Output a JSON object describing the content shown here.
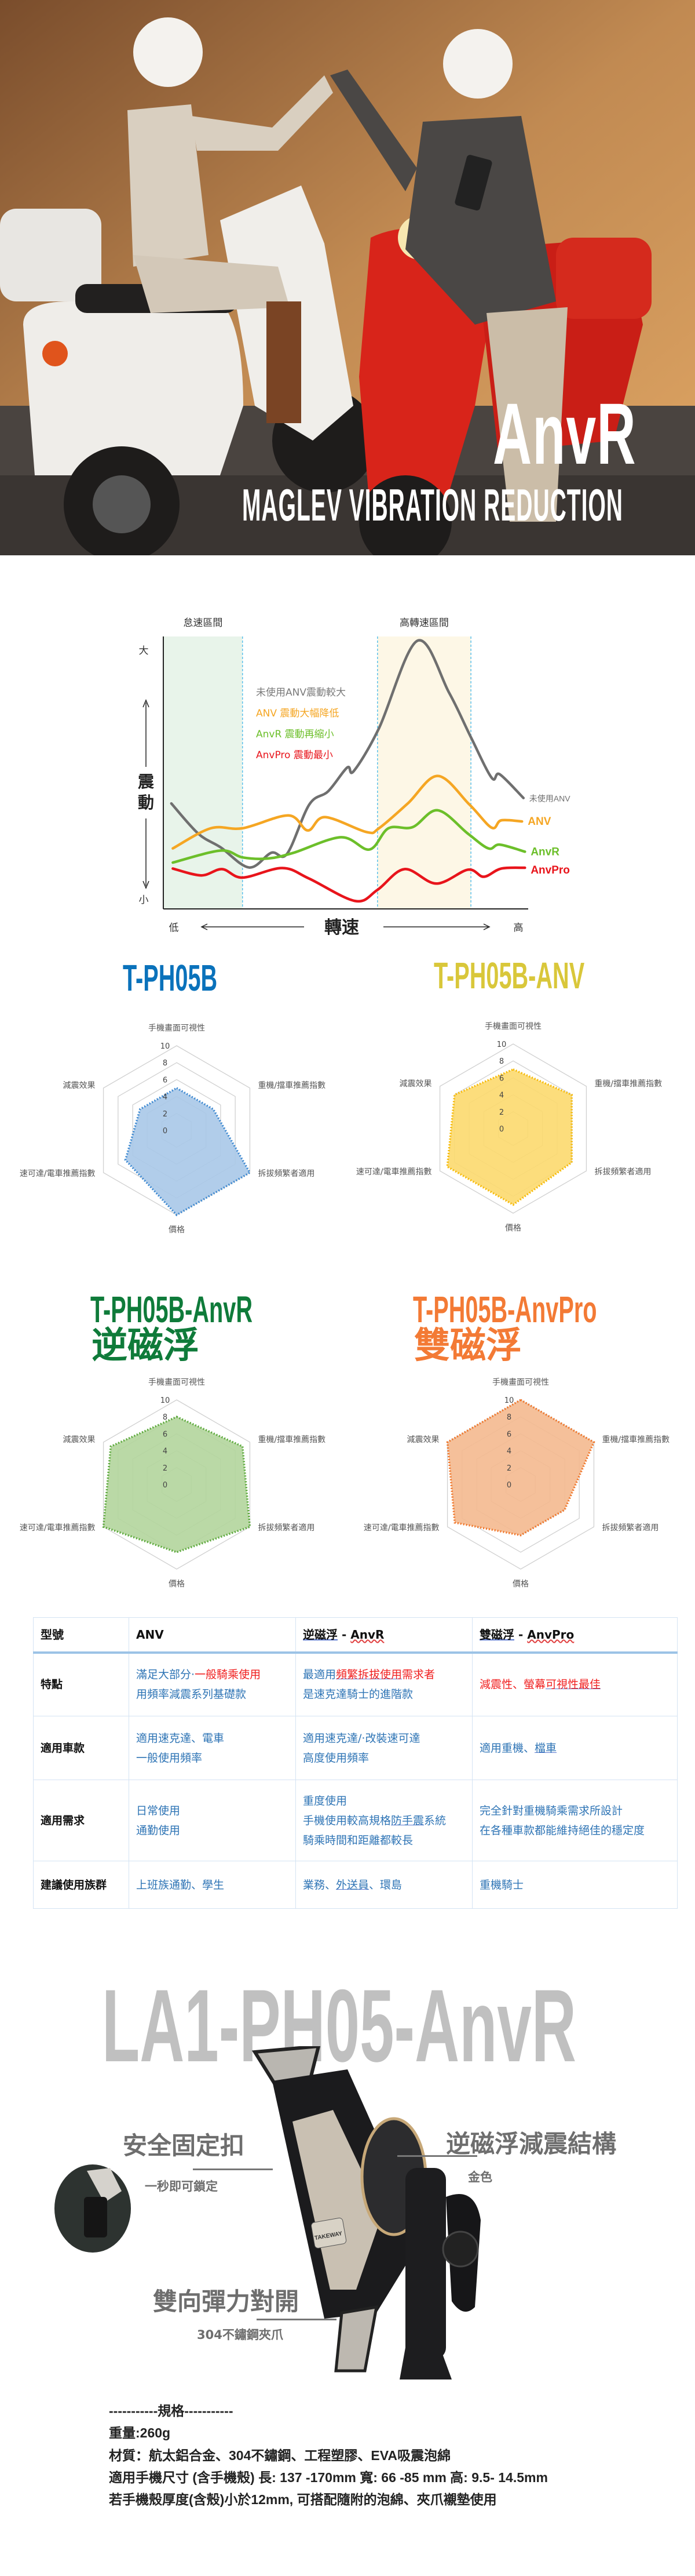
{
  "hero": {
    "title": "AnvR",
    "subtitle": "MAGLEV VIBRATION REDUCTION"
  },
  "chart_data": [
    {
      "type": "line",
      "title": "",
      "xlabel": "轉速",
      "ylabel": "震動",
      "x_low_label": "低",
      "x_high_label": "高",
      "y_high_label": "大",
      "y_low_label": "小",
      "regions": [
        {
          "label": "怠速區間",
          "color": "#e8f4ea",
          "range": [
            0,
            21.7
          ]
        },
        {
          "label": "高轉速區間",
          "color": "#fdf7e6",
          "range": [
            58.7,
            84.3
          ]
        }
      ],
      "annotations": [
        {
          "text": "未使用ANV震動較大",
          "color": "#7a7a7a"
        },
        {
          "text": "ANV 震動大幅降低",
          "color": "#f5a623"
        },
        {
          "text": "AnvR 震動再縮小",
          "color": "#6cbf2a"
        },
        {
          "text": "AnvPro 震動最小",
          "color": "#e8141b"
        }
      ],
      "xlim": [
        0,
        100
      ],
      "ylim": [
        0,
        100
      ],
      "grid": false,
      "series": [
        {
          "name": "未使用ANV",
          "color": "#6f6f6f",
          "x": [
            2.2,
            9.6,
            15.7,
            23.5,
            29.6,
            33.9,
            40,
            45.2,
            50.4,
            52.2,
            59.1,
            69.6,
            78.3,
            84.3,
            90,
            92.2,
            98.7
          ],
          "y": [
            38.7,
            27.6,
            22.6,
            15.2,
            20.6,
            20.2,
            38.3,
            43.2,
            51.9,
            50.6,
            66.3,
            98.4,
            79.4,
            63,
            48.1,
            49.4,
            40.7
          ]
        },
        {
          "name": "ANV",
          "color": "#f5a623",
          "x": [
            2.6,
            13,
            21.7,
            34.3,
            39.6,
            44.3,
            55.7,
            59.1,
            67,
            75.2,
            83.9,
            90,
            92.6,
            98.3
          ],
          "y": [
            22.2,
            29.6,
            29.6,
            34.3,
            28.8,
            33.7,
            28.2,
            29.6,
            38.7,
            48.8,
            38.3,
            29.8,
            32.5,
            32.1
          ]
        },
        {
          "name": "AnvR",
          "color": "#6cbf2a",
          "x": [
            2.6,
            15.7,
            21.7,
            28.7,
            35.7,
            48.7,
            56.5,
            61.7,
            68.3,
            75.2,
            83.5,
            89.1,
            92.2,
            99.1
          ],
          "y": [
            17,
            21.4,
            18.9,
            18.5,
            20.6,
            26.3,
            21.8,
            29.6,
            30,
            36.2,
            27.6,
            22.2,
            23.6,
            21
          ]
        },
        {
          "name": "AnvPro",
          "color": "#e8141b",
          "x": [
            2.6,
            10.4,
            16.1,
            21.7,
            32.6,
            40,
            52.6,
            58.7,
            66.1,
            74.8,
            83.5,
            87.8,
            92.6,
            99.1
          ],
          "y": [
            14.8,
            12.3,
            14.6,
            11.5,
            15,
            11.1,
            2.9,
            7,
            14.6,
            9.3,
            14.4,
            11.8,
            14.8,
            15.1
          ]
        }
      ]
    },
    {
      "type": "radar",
      "title": "T-PH05B",
      "title_color": "#0a72bb",
      "fill": "#a9c8e8",
      "stroke": "#3a87d0",
      "categories": [
        "手機畫面可視性",
        "重機/擋車推薦指數",
        "拆拔頻繁者適用",
        "價格",
        "速可達/電車推薦指數",
        "減震效果"
      ],
      "ticks": [
        0,
        2,
        4,
        6,
        8,
        10
      ],
      "ylim": [
        0,
        10
      ],
      "values": [
        5,
        5,
        10,
        10,
        7,
        5
      ]
    },
    {
      "type": "radar",
      "title": "T-PH05B-ANV",
      "title_color": "#d9c73a",
      "fill": "#fcd96e",
      "stroke": "#f6b800",
      "categories": [
        "手機畫面可視性",
        "重機/擋車推薦指數",
        "拆拔頻繁者適用",
        "價格",
        "速可達/電車推薦指數",
        "減震效果"
      ],
      "ticks": [
        0,
        2,
        4,
        6,
        8,
        10
      ],
      "ylim": [
        0,
        10
      ],
      "values": [
        7,
        8,
        8,
        9,
        9,
        8
      ]
    },
    {
      "type": "radar",
      "title": "T-PH05B-AnvR",
      "subtitle": "逆磁浮",
      "title_color": "#0f7b3a",
      "fill": "#b3d59c",
      "stroke": "#58a737",
      "categories": [
        "手機畫面可視性",
        "重機/擋車推薦指數",
        "拆拔頻繁者適用",
        "價格",
        "速可達/電車推薦指數",
        "減震效果"
      ],
      "ticks": [
        0,
        2,
        4,
        6,
        8,
        10
      ],
      "ylim": [
        0,
        10
      ],
      "values": [
        8,
        9,
        10,
        8,
        10,
        9
      ]
    },
    {
      "type": "radar",
      "title": "T-PH05B-AnvPro",
      "subtitle": "雙磁浮",
      "title_color": "#f37a35",
      "fill": "#f4b98f",
      "stroke": "#f07325",
      "categories": [
        "手機畫面可視性",
        "重機/擋車推薦指數",
        "拆拔頻繁者適用",
        "價格",
        "速可達/電車推薦指數",
        "減震效果"
      ],
      "ticks": [
        0,
        2,
        4,
        6,
        8,
        10
      ],
      "ylim": [
        0,
        10
      ],
      "values": [
        10,
        10,
        6,
        6,
        9,
        10
      ]
    }
  ],
  "table": {
    "headers": {
      "c0": "型號",
      "c1": "ANV",
      "c2a": "逆磁浮",
      "c2b": " - ",
      "c2c": "AnvR",
      "c3a": "雙磁浮",
      "c3b": " - ",
      "c3c": "AnvPro"
    },
    "feature": {
      "label": "特點",
      "anv_a": "滿足大部分‧",
      "anv_b": "一般騎乘使",
      "anv_c": "用",
      "anv_d": "用頻率減震系列基礎款",
      "anvr_a": "最適用",
      "anvr_b": "頻繁拆拔使用",
      "anvr_c": "需求者",
      "anvr_d": "是速克達騎士的進階款",
      "pro_a": "減震性、螢幕",
      "pro_b": "可視性最佳"
    },
    "vehicle": {
      "label": "適用車款",
      "anv_a": "適用速克達、電車",
      "anv_b": "一般使用頻率",
      "anvr_a": "適用速克達/‧改裝速可達",
      "anvr_b": "高度使用頻率",
      "pro_a": "適用重機、",
      "pro_b": "檔車"
    },
    "need": {
      "label": "適用需求",
      "anv_a": "日常使用",
      "anv_b": "通勤使用",
      "anvr_a": "重度使用",
      "anvr_b1": "手機使用較高規格",
      "anvr_b2": "防手震",
      "anvr_b3": "系統",
      "anvr_c": "騎乘時間和距離都較長",
      "pro_a": "完全針對重機騎乘需求所設計",
      "pro_b": "在各種車款都能維持絕佳的穩定度"
    },
    "group": {
      "label": "建議使用族群",
      "anv": "上班族通勤、學生",
      "anvr_a": "業務、",
      "anvr_b": "外送員",
      "anvr_c": "、環島",
      "pro": "重機騎士"
    }
  },
  "product": {
    "model": "LA1-PH05-AnvR",
    "brand_logo": "TAKEWAY",
    "callouts": [
      {
        "title": "安全固定扣",
        "sub": "一秒即可鎖定"
      },
      {
        "title": "逆磁浮減震結構",
        "sub": "金色"
      },
      {
        "title": "雙向彈力對開",
        "sub": "304不鏽鋼夾爪"
      }
    ]
  },
  "specs": {
    "heading": "-----------規格-----------",
    "weight": "重量:260g",
    "material": "材質：航太鋁合金、304不鏽鋼、工程塑膠、EVA吸震泡綿",
    "size": "適用手機尺寸 (含手機殼) 長: 137 -170mm 寬: 66 -85 mm 高: 9.5- 14.5mm",
    "note": "若手機殼厚度(含殼)小於12mm, 可搭配隨附的泡綿、夾爪襯墊使用"
  }
}
